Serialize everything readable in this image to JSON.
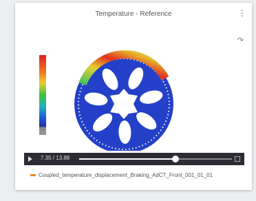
{
  "header": {
    "title": "Temperature - Reference"
  },
  "player": {
    "time": "7.35 / 13.88"
  },
  "legend": {
    "label": "Coupled_temperature_displacement_Braking_AdCT_Front_001_01_01"
  }
}
